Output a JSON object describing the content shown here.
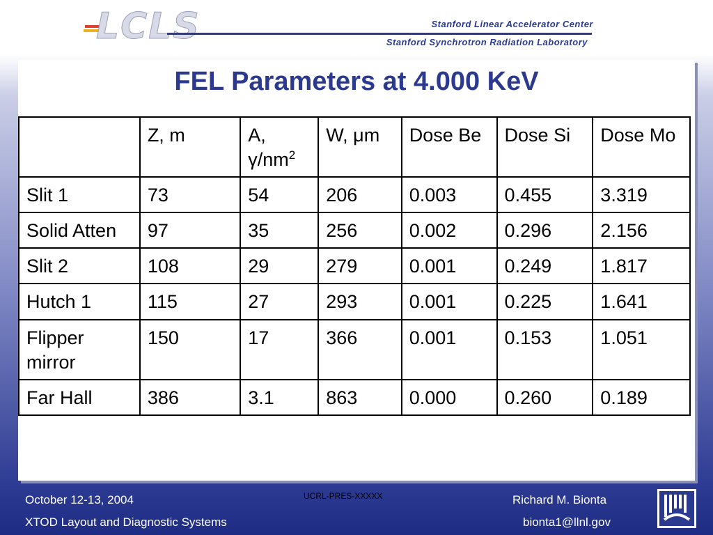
{
  "header": {
    "logo_text": "LCLS",
    "org_line1": "Stanford Linear Accelerator Center",
    "org_line2": "Stanford Synchrotron Radiation Laboratory"
  },
  "slide": {
    "title": "FEL Parameters at 4.000 KeV"
  },
  "table": {
    "headers": [
      "",
      "Z, m",
      "A, γ/nm",
      "W, μm",
      "Dose Be",
      "Dose Si",
      "Dose Mo"
    ],
    "header_superscript": "2",
    "rows": [
      [
        "Slit 1",
        "73",
        "54",
        "206",
        "0.003",
        "0.455",
        "3.319"
      ],
      [
        "Solid Atten",
        "97",
        "35",
        "256",
        "0.002",
        "0.296",
        "2.156"
      ],
      [
        "Slit 2",
        "108",
        "29",
        "279",
        "0.001",
        "0.249",
        "1.817"
      ],
      [
        "Hutch 1",
        "115",
        "27",
        "293",
        "0.001",
        "0.225",
        "1.641"
      ],
      [
        "Flipper mirror",
        "150",
        "17",
        "366",
        "0.001",
        "0.153",
        "1.051"
      ],
      [
        "Far Hall",
        "386",
        "3.1",
        "863",
        "0.000",
        "0.260",
        "0.189"
      ]
    ]
  },
  "footer": {
    "date": "October 12-13, 2004",
    "subtitle": "XTOD Layout and Diagnostic Systems",
    "doc_code": "UCRL-PRES-XXXXX",
    "author": "Richard M. Bionta",
    "email": "bionta1@llnl.gov"
  },
  "colors": {
    "title": "#2b3a8f",
    "footer_text": "#ffffff",
    "background_bottom": "#1e2c84"
  },
  "icons": {
    "footer_logo": "llnl-logo-icon"
  }
}
